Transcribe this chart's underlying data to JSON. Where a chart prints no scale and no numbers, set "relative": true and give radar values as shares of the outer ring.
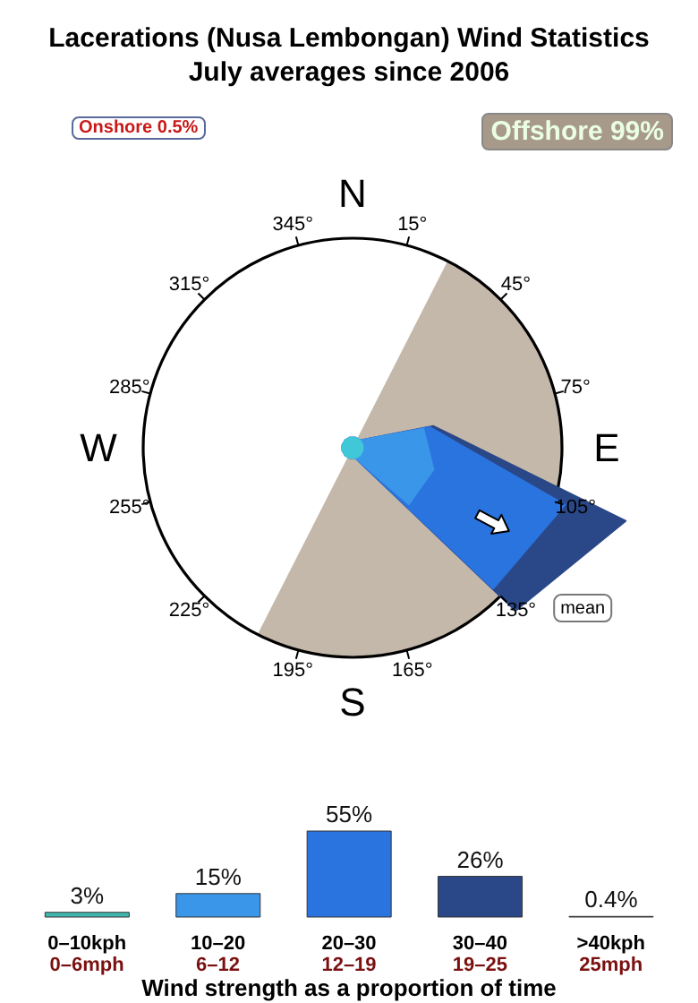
{
  "chart_data": [
    {
      "type": "radar",
      "relative": true,
      "title": "Lacerations (Nusa Lembongan) Wind Statistics",
      "subtitle": "July averages since 2006",
      "categories": [
        "15°",
        "45°",
        "75°",
        "105°",
        "135°",
        "165°",
        "195°",
        "225°",
        "255°",
        "285°",
        "315°",
        "345°"
      ],
      "series": [
        {
          "color": "#2a4888",
          "values": [
            0.05,
            0.05,
            0.4,
            1.35,
            1.1,
            0.05,
            0.05,
            0.05,
            0.05,
            0.05,
            0.05,
            0.05
          ]
        },
        {
          "color": "#2a74e0",
          "values": [
            0.05,
            0.05,
            0.38,
            1.05,
            0.95,
            0.05,
            0.05,
            0.05,
            0.05,
            0.05,
            0.05,
            0.05
          ]
        },
        {
          "color": "#3a96e8",
          "values": [
            0.05,
            0.05,
            0.35,
            0.4,
            0.38,
            0.05,
            0.05,
            0.05,
            0.05,
            0.05,
            0.05,
            0.05
          ]
        },
        {
          "color": "#40c8d8",
          "values": [
            0.05,
            0.05,
            0.05,
            0.05,
            0.05,
            0.05,
            0.05,
            0.05,
            0.05,
            0.05,
            0.05,
            0.05
          ]
        }
      ],
      "annotations": [
        "Onshore 0.5%",
        "Offshore 99%",
        "mean",
        "N",
        "E",
        "S",
        "W"
      ]
    },
    {
      "type": "bar",
      "xlabel": "Wind strength as a proportion of time",
      "categories": [
        "0–10kph\n0–6mph",
        "10–20\n6–12",
        "20–30\n12–19",
        "30–40\n19–25",
        ">40kph\n25mph"
      ],
      "values": [
        3,
        15,
        55,
        26,
        0.4
      ],
      "value_labels": [
        "3%",
        "15%",
        "55%",
        "26%",
        "0.4%"
      ],
      "colors": [
        "#40b8b0",
        "#3a96e8",
        "#2a74e0",
        "#2a4888",
        "#9a9a9a"
      ],
      "tick_labels": "x"
    }
  ]
}
